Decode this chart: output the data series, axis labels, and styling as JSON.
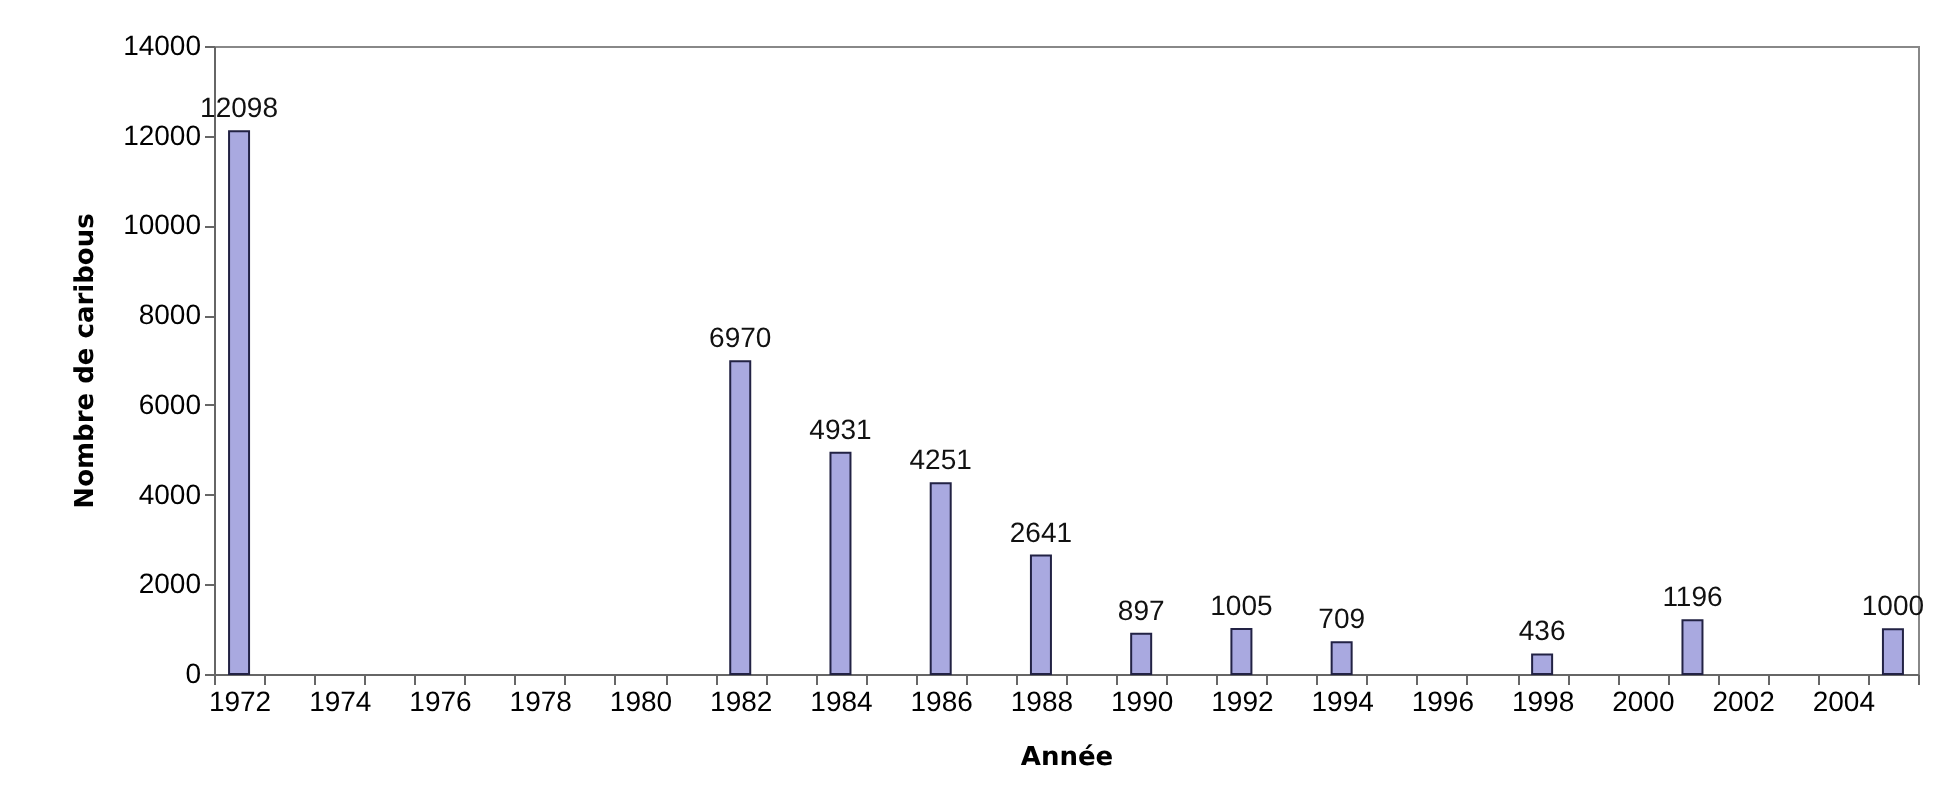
{
  "chart_data": {
    "type": "bar",
    "xlabel": "Année",
    "ylabel": "Nombre de caribous",
    "categories": [
      "1972",
      null,
      "1974",
      null,
      "1976",
      null,
      "1978",
      null,
      "1980",
      null,
      "1982",
      null,
      "1984",
      null,
      "1986",
      null,
      "1988",
      null,
      "1990",
      null,
      "1992",
      null,
      "1994",
      null,
      "1996",
      null,
      "1998",
      null,
      "2000",
      null,
      "2002",
      null,
      "2004",
      null
    ],
    "values": [
      12098,
      null,
      null,
      null,
      null,
      null,
      null,
      null,
      null,
      null,
      6970,
      null,
      4931,
      null,
      4251,
      null,
      2641,
      null,
      897,
      null,
      1005,
      null,
      709,
      null,
      null,
      null,
      436,
      null,
      null,
      1196,
      null,
      null,
      null,
      1000
    ],
    "color": "#a9a9e0",
    "ylim": [
      0,
      14000
    ],
    "yticks": [
      0,
      2000,
      4000,
      6000,
      8000,
      10000,
      12000,
      14000
    ],
    "data_labels": true,
    "grid": false
  }
}
